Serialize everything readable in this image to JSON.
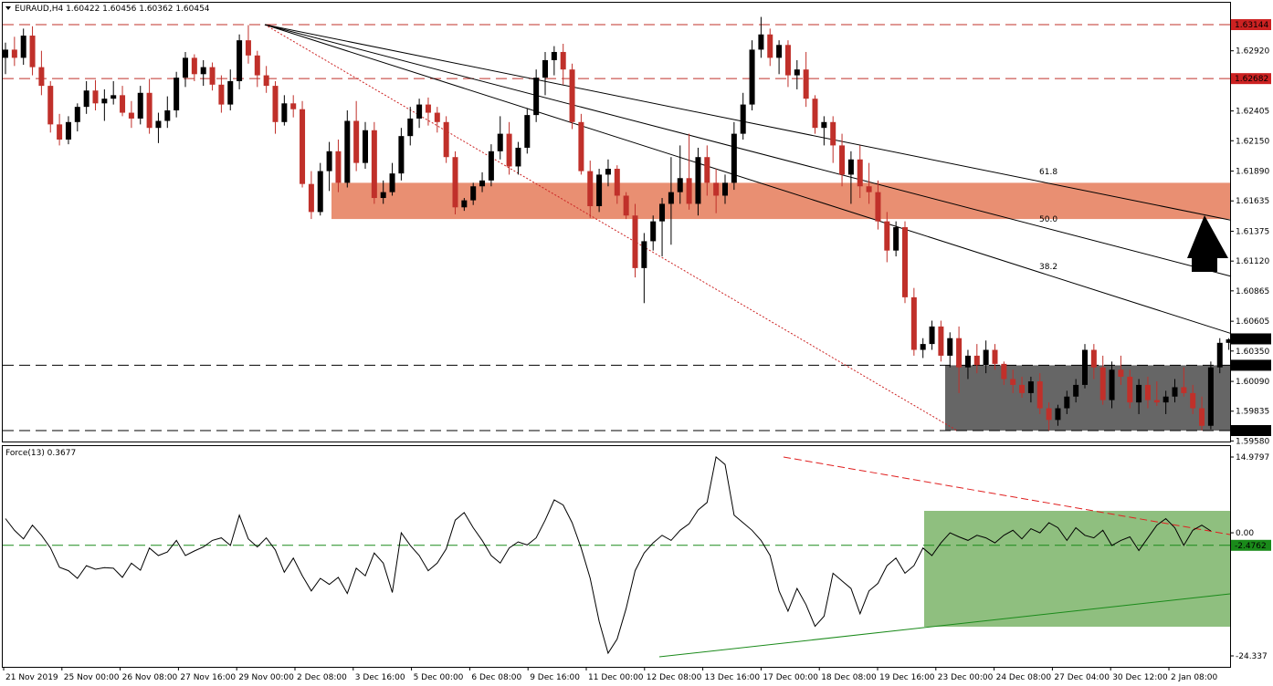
{
  "header": {
    "symbol": "EURAUD,H4",
    "ohlc": "1.60422 1.60456 1.60362 1.60454"
  },
  "indicator": {
    "label": "Force(13) 0.3677",
    "axis": {
      "max": 14.9797,
      "zero": 0.0,
      "current": -2.4762,
      "min": -24.337
    },
    "axis_labels": [
      "14.9797",
      "0.00",
      "-2.4762",
      "-24.337"
    ]
  },
  "price_axis": {
    "min": 1.5958,
    "max": 1.63144,
    "ticks": [
      "1.62920",
      "1.62405",
      "1.62150",
      "1.61890",
      "1.61635",
      "1.61375",
      "1.61120",
      "1.60865",
      "1.60605",
      "1.60350",
      "1.60090",
      "1.59835",
      "1.59580"
    ],
    "highlight_labels": [
      {
        "text": "1.63144",
        "value": 1.63144,
        "color": "#cc2222"
      },
      {
        "text": "1.62682",
        "value": 1.62682,
        "color": "#cc2222"
      },
      {
        "text": "1.60454",
        "value": 1.60454,
        "color": "#000000"
      },
      {
        "text": "1.60228",
        "value": 1.60228,
        "color": "#000000"
      },
      {
        "text": "1.59669",
        "value": 1.59669,
        "color": "#000000"
      }
    ]
  },
  "time_axis": [
    "21 Nov 2019",
    "25 Nov 00:00",
    "26 Nov 08:00",
    "27 Nov 16:00",
    "29 Nov 00:00",
    "2 Dec 08:00",
    "3 Dec 16:00",
    "5 Dec 00:00",
    "6 Dec 08:00",
    "9 Dec 16:00",
    "11 Dec 00:00",
    "12 Dec 08:00",
    "13 Dec 16:00",
    "17 Dec 00:00",
    "18 Dec 08:00",
    "19 Dec 16:00",
    "23 Dec 00:00",
    "24 Dec 08:00",
    "27 Dec 04:00",
    "30 Dec 12:00",
    "2 Jan 08:00"
  ],
  "fib_labels": [
    "61.8",
    "50.0",
    "38.2"
  ],
  "chart_data": {
    "type": "candlestick",
    "resistance_levels": [
      1.63144,
      1.62682
    ],
    "support_levels": [
      1.60228,
      1.59669
    ],
    "resistance_zone": [
      1.6148,
      1.6179
    ],
    "support_zone": [
      1.59669,
      1.60228
    ],
    "last_price": 1.60454,
    "candles": [
      [
        1.6286,
        1.6299,
        1.6272,
        1.6293
      ],
      [
        1.6293,
        1.6304,
        1.6279,
        1.6286
      ],
      [
        1.6286,
        1.6311,
        1.628,
        1.6305
      ],
      [
        1.6305,
        1.6313,
        1.6271,
        1.6278
      ],
      [
        1.6278,
        1.6292,
        1.6254,
        1.6262
      ],
      [
        1.6262,
        1.6266,
        1.6222,
        1.6229
      ],
      [
        1.6229,
        1.6238,
        1.6211,
        1.6216
      ],
      [
        1.6216,
        1.6236,
        1.6212,
        1.6231
      ],
      [
        1.6231,
        1.6247,
        1.6223,
        1.6244
      ],
      [
        1.6244,
        1.6266,
        1.6238,
        1.6258
      ],
      [
        1.6258,
        1.6267,
        1.6241,
        1.6247
      ],
      [
        1.6247,
        1.6259,
        1.6232,
        1.6251
      ],
      [
        1.6251,
        1.6266,
        1.6246,
        1.6254
      ],
      [
        1.6254,
        1.6262,
        1.6236,
        1.6239
      ],
      [
        1.6239,
        1.6249,
        1.6226,
        1.6234
      ],
      [
        1.6234,
        1.6262,
        1.6229,
        1.6256
      ],
      [
        1.6256,
        1.6268,
        1.6221,
        1.6226
      ],
      [
        1.6226,
        1.6239,
        1.6213,
        1.6232
      ],
      [
        1.6232,
        1.6253,
        1.6226,
        1.6241
      ],
      [
        1.6241,
        1.6274,
        1.6235,
        1.6269
      ],
      [
        1.6269,
        1.6291,
        1.6261,
        1.6286
      ],
      [
        1.6286,
        1.6289,
        1.6266,
        1.6272
      ],
      [
        1.6272,
        1.6284,
        1.6262,
        1.6278
      ],
      [
        1.6278,
        1.6282,
        1.6258,
        1.6263
      ],
      [
        1.6263,
        1.6271,
        1.6239,
        1.6246
      ],
      [
        1.6246,
        1.6276,
        1.6241,
        1.6266
      ],
      [
        1.6266,
        1.6306,
        1.6259,
        1.6301
      ],
      [
        1.6301,
        1.6314,
        1.6281,
        1.6288
      ],
      [
        1.6288,
        1.6292,
        1.6261,
        1.6271
      ],
      [
        1.6271,
        1.6279,
        1.6256,
        1.6262
      ],
      [
        1.6262,
        1.6266,
        1.6221,
        1.6231
      ],
      [
        1.6231,
        1.6254,
        1.6228,
        1.6247
      ],
      [
        1.6247,
        1.6254,
        1.6235,
        1.6242
      ],
      [
        1.6242,
        1.6249,
        1.6175,
        1.6178
      ],
      [
        1.6178,
        1.6189,
        1.6148,
        1.6154
      ],
      [
        1.6154,
        1.6196,
        1.6151,
        1.6189
      ],
      [
        1.6189,
        1.6214,
        1.6172,
        1.6206
      ],
      [
        1.6206,
        1.6216,
        1.6171,
        1.6179
      ],
      [
        1.6179,
        1.6241,
        1.6175,
        1.6232
      ],
      [
        1.6232,
        1.6249,
        1.6189,
        1.6196
      ],
      [
        1.6196,
        1.6231,
        1.6191,
        1.6224
      ],
      [
        1.6224,
        1.6231,
        1.6161,
        1.6166
      ],
      [
        1.6166,
        1.6181,
        1.6161,
        1.6171
      ],
      [
        1.6171,
        1.6196,
        1.6168,
        1.6187
      ],
      [
        1.6187,
        1.6226,
        1.6181,
        1.6219
      ],
      [
        1.6219,
        1.6244,
        1.6211,
        1.6234
      ],
      [
        1.6234,
        1.6251,
        1.6226,
        1.6246
      ],
      [
        1.6246,
        1.6252,
        1.6228,
        1.6239
      ],
      [
        1.6239,
        1.6244,
        1.6222,
        1.6231
      ],
      [
        1.6231,
        1.6236,
        1.6196,
        1.6201
      ],
      [
        1.6201,
        1.6206,
        1.6152,
        1.6158
      ],
      [
        1.6158,
        1.6166,
        1.6155,
        1.6164
      ],
      [
        1.6164,
        1.6179,
        1.616,
        1.6176
      ],
      [
        1.6176,
        1.6188,
        1.6171,
        1.6181
      ],
      [
        1.6181,
        1.6212,
        1.6176,
        1.6206
      ],
      [
        1.6206,
        1.6236,
        1.6199,
        1.6221
      ],
      [
        1.6221,
        1.6231,
        1.6186,
        1.6193
      ],
      [
        1.6193,
        1.6214,
        1.6186,
        1.6209
      ],
      [
        1.6209,
        1.6243,
        1.6204,
        1.6237
      ],
      [
        1.6237,
        1.6276,
        1.6231,
        1.6269
      ],
      [
        1.6269,
        1.6291,
        1.6254,
        1.6284
      ],
      [
        1.6284,
        1.6296,
        1.6271,
        1.6291
      ],
      [
        1.6291,
        1.6298,
        1.6263,
        1.6276
      ],
      [
        1.6276,
        1.6281,
        1.6225,
        1.6231
      ],
      [
        1.6231,
        1.6238,
        1.6186,
        1.6189
      ],
      [
        1.6189,
        1.6198,
        1.6149,
        1.6159
      ],
      [
        1.6159,
        1.6191,
        1.6154,
        1.6186
      ],
      [
        1.6186,
        1.6199,
        1.6176,
        1.6191
      ],
      [
        1.6191,
        1.6194,
        1.6161,
        1.6168
      ],
      [
        1.6168,
        1.6171,
        1.6148,
        1.6151
      ],
      [
        1.6151,
        1.6161,
        1.6098,
        1.6106
      ],
      [
        1.6106,
        1.6136,
        1.6076,
        1.6129
      ],
      [
        1.6129,
        1.6151,
        1.6121,
        1.6146
      ],
      [
        1.6146,
        1.6166,
        1.6116,
        1.6161
      ],
      [
        1.6161,
        1.6201,
        1.6126,
        1.6171
      ],
      [
        1.6171,
        1.6211,
        1.6161,
        1.6183
      ],
      [
        1.6183,
        1.6221,
        1.6156,
        1.6161
      ],
      [
        1.6161,
        1.6209,
        1.6151,
        1.6201
      ],
      [
        1.6201,
        1.6211,
        1.6168,
        1.6179
      ],
      [
        1.6179,
        1.6191,
        1.6153,
        1.6168
      ],
      [
        1.6168,
        1.6186,
        1.6161,
        1.6179
      ],
      [
        1.6179,
        1.6231,
        1.6173,
        1.6221
      ],
      [
        1.6221,
        1.6256,
        1.6216,
        1.6246
      ],
      [
        1.6246,
        1.6301,
        1.6241,
        1.6293
      ],
      [
        1.6293,
        1.6321,
        1.6286,
        1.6306
      ],
      [
        1.6306,
        1.6311,
        1.6279,
        1.6286
      ],
      [
        1.6286,
        1.6301,
        1.6272,
        1.6297
      ],
      [
        1.6297,
        1.6301,
        1.6261,
        1.6271
      ],
      [
        1.6271,
        1.6284,
        1.6259,
        1.6276
      ],
      [
        1.6276,
        1.6291,
        1.6244,
        1.6251
      ],
      [
        1.6251,
        1.6254,
        1.6221,
        1.6226
      ],
      [
        1.6226,
        1.6236,
        1.6211,
        1.6231
      ],
      [
        1.6231,
        1.6236,
        1.6196,
        1.6211
      ],
      [
        1.6211,
        1.6221,
        1.6176,
        1.6186
      ],
      [
        1.6186,
        1.6206,
        1.6161,
        1.6199
      ],
      [
        1.6199,
        1.6211,
        1.6166,
        1.6176
      ],
      [
        1.6176,
        1.6196,
        1.6161,
        1.6171
      ],
      [
        1.6171,
        1.6181,
        1.6139,
        1.6146
      ],
      [
        1.6146,
        1.6154,
        1.6111,
        1.6121
      ],
      [
        1.6121,
        1.6146,
        1.6116,
        1.6141
      ],
      [
        1.6141,
        1.6146,
        1.6076,
        1.6081
      ],
      [
        1.6081,
        1.6089,
        1.6031,
        1.6036
      ],
      [
        1.6036,
        1.6046,
        1.6029,
        1.6041
      ],
      [
        1.6041,
        1.6061,
        1.6036,
        1.6056
      ],
      [
        1.6056,
        1.6061,
        1.6026,
        1.6031
      ],
      [
        1.6031,
        1.6051,
        1.6021,
        1.6046
      ],
      [
        1.6046,
        1.6056,
        1.5999,
        1.6021
      ],
      [
        1.6021,
        1.6036,
        1.6011,
        1.6031
      ],
      [
        1.6031,
        1.6041,
        1.6016,
        1.6023
      ],
      [
        1.6023,
        1.6044,
        1.6016,
        1.6036
      ],
      [
        1.6036,
        1.6041,
        1.6019,
        1.6024
      ],
      [
        1.6024,
        1.6026,
        1.6006,
        1.6011
      ],
      [
        1.6011,
        1.6019,
        1.5999,
        1.6006
      ],
      [
        1.6006,
        1.6013,
        1.5995,
        1.5999
      ],
      [
        1.5999,
        1.6013,
        1.5991,
        1.6009
      ],
      [
        1.6009,
        1.6016,
        1.5981,
        1.5986
      ],
      [
        1.5986,
        1.5991,
        1.5967,
        1.5976
      ],
      [
        1.5976,
        1.5989,
        1.5971,
        1.5986
      ],
      [
        1.5986,
        1.6001,
        1.5981,
        1.5996
      ],
      [
        1.5996,
        1.6011,
        1.5991,
        1.6006
      ],
      [
        1.6006,
        1.6041,
        1.6003,
        1.6036
      ],
      [
        1.6036,
        1.6041,
        1.6011,
        1.6021
      ],
      [
        1.6021,
        1.6031,
        1.5989,
        1.5993
      ],
      [
        1.5993,
        1.6026,
        1.5986,
        1.6019
      ],
      [
        1.6019,
        1.6031,
        1.6006,
        1.6013
      ],
      [
        1.6013,
        1.6019,
        1.5986,
        1.5991
      ],
      [
        1.5991,
        1.6011,
        1.5981,
        1.6006
      ],
      [
        1.6006,
        1.6013,
        1.5986,
        1.5993
      ],
      [
        1.5993,
        1.6009,
        1.5988,
        1.5991
      ],
      [
        1.5991,
        1.6001,
        1.5981,
        1.5996
      ],
      [
        1.5996,
        1.6011,
        1.5991,
        1.6004
      ],
      [
        1.6004,
        1.6021,
        1.5996,
        1.5999
      ],
      [
        1.5999,
        1.6006,
        1.5981,
        1.5986
      ],
      [
        1.5986,
        1.5996,
        1.5967,
        1.5971
      ],
      [
        1.5971,
        1.6026,
        1.5968,
        1.6021
      ],
      [
        1.6021,
        1.6046,
        1.6016,
        1.6042
      ],
      [
        1.6042,
        1.6046,
        1.6036,
        1.6045
      ]
    ],
    "force_index": [
      2.8,
      0.5,
      -1.2,
      1.5,
      -0.5,
      -3.0,
      -6.8,
      -7.5,
      -9.0,
      -6.5,
      -7.2,
      -6.9,
      -7.0,
      -8.8,
      -6.0,
      -7.4,
      -3.0,
      -4.5,
      -3.8,
      -1.5,
      -4.5,
      -3.6,
      -2.8,
      -1.5,
      -1.0,
      -2.5,
      3.5,
      -1.2,
      -2.8,
      -1.0,
      -3.4,
      -7.8,
      -5.0,
      -8.5,
      -11.5,
      -9.0,
      -10.2,
      -8.8,
      -12.0,
      -7.0,
      -8.5,
      -4.0,
      -6.0,
      -11.8,
      0.0,
      -2.5,
      -4.5,
      -7.5,
      -6.0,
      -3.2,
      2.5,
      4.0,
      1.0,
      -1.5,
      -4.5,
      -6.0,
      -3.0,
      -1.8,
      -2.4,
      -1.0,
      2.5,
      6.5,
      5.5,
      2.0,
      -3.0,
      -9.0,
      -17.5,
      -23.8,
      -21.0,
      -15.0,
      -7.5,
      -4.0,
      -2.0,
      -0.5,
      -1.5,
      0.5,
      1.8,
      4.5,
      6.0,
      15.0,
      13.5,
      3.5,
      2.0,
      0.5,
      -1.5,
      -4.5,
      -11.5,
      -15.5,
      -11.0,
      -14.2,
      -18.5,
      -16.5,
      -8.0,
      -9.5,
      -11.0,
      -16.0,
      -11.5,
      -10.0,
      -6.5,
      -5.0,
      -8.0,
      -6.5,
      -3.0,
      -4.5,
      -2.0,
      0.0,
      -0.8,
      -1.5,
      -0.5,
      -1.0,
      -2.0,
      -0.5,
      0.5,
      -1.2,
      0.8,
      0.0,
      2.0,
      1.0,
      -1.5,
      1.0,
      -0.5,
      -1.0,
      0.5,
      -2.5,
      -1.5,
      -0.8,
      -3.5,
      -1.0,
      1.5,
      2.8,
      1.0,
      -2.5,
      0.5,
      1.5,
      0.3677
    ]
  },
  "colors": {
    "bull_candle": "#000000",
    "bear_candle": "#c0302a",
    "resistance_zone": "#e98f72",
    "support_zone": "#666666",
    "indicator_zone": "#8fbf7f",
    "arrow": "#000000"
  }
}
